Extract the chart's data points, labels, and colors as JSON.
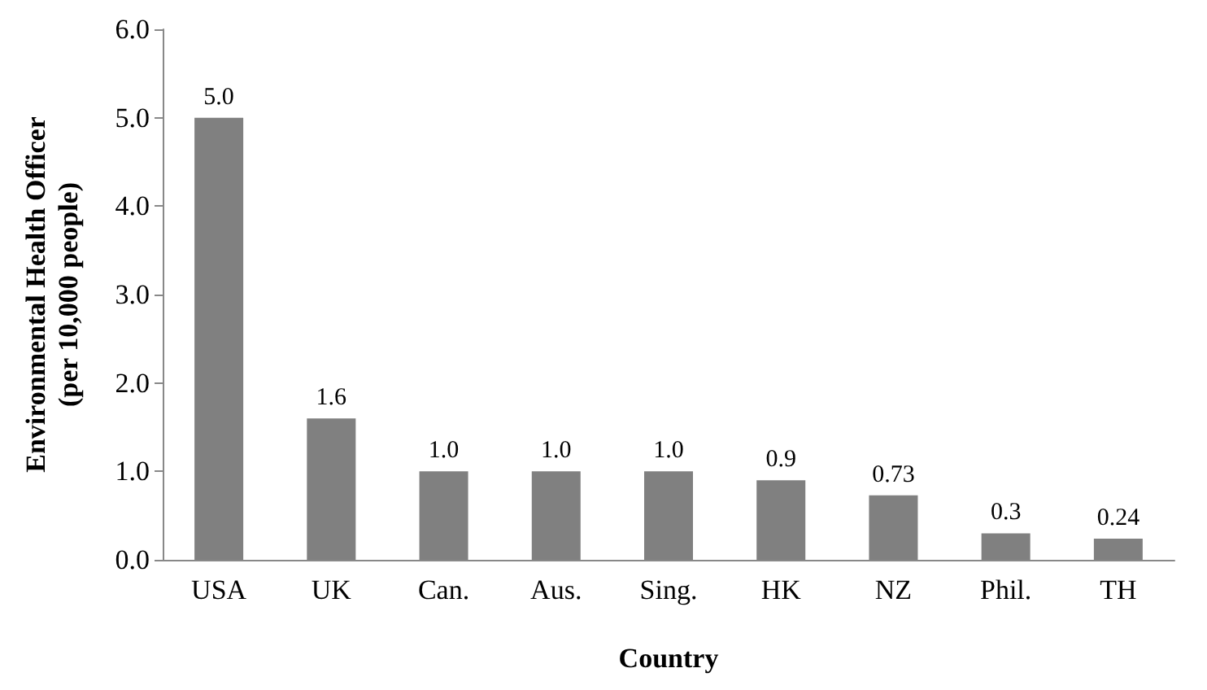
{
  "chart_data": {
    "type": "bar",
    "xlabel": "Country",
    "ylabel": "Environmental Health Officer\n(per 10,000 people)",
    "categories": [
      "USA",
      "UK",
      "Can.",
      "Aus.",
      "Sing.",
      "HK",
      "NZ",
      "Phil.",
      "TH"
    ],
    "values": [
      5.0,
      1.6,
      1.0,
      1.0,
      1.0,
      0.9,
      0.73,
      0.3,
      0.24
    ],
    "value_labels": [
      "5.0",
      "1.6",
      "1.0",
      "1.0",
      "1.0",
      "0.9",
      "0.73",
      "0.3",
      "0.24"
    ],
    "color": "#808080",
    "ylim": [
      0,
      6
    ],
    "yticks": [
      {
        "value": 0,
        "label": "0.0"
      },
      {
        "value": 1,
        "label": "1.0"
      },
      {
        "value": 2,
        "label": "2.0"
      },
      {
        "value": 3,
        "label": "3.0"
      },
      {
        "value": 4,
        "label": "4.0"
      },
      {
        "value": 5,
        "label": "5.0"
      },
      {
        "value": 6,
        "label": "6.0"
      }
    ],
    "grid": false
  }
}
